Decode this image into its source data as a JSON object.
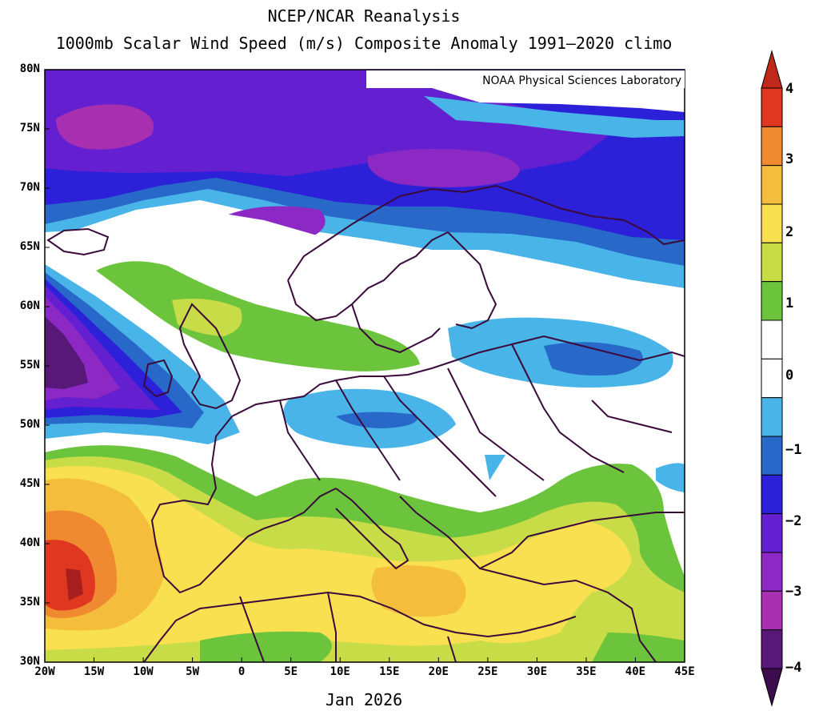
{
  "title_line1": "NCEP/NCAR Reanalysis",
  "title_line2": "1000mb Scalar Wind Speed (m/s) Composite Anomaly 1991–2020 climo",
  "credit": "NOAA Physical Sciences Laboratory",
  "period": "Jan 2026",
  "lat_ticks": [
    "80N",
    "75N",
    "70N",
    "65N",
    "60N",
    "55N",
    "50N",
    "45N",
    "40N",
    "35N",
    "30N"
  ],
  "lon_ticks": [
    "20W",
    "15W",
    "10W",
    "5W",
    "0",
    "5E",
    "10E",
    "15E",
    "20E",
    "25E",
    "30E",
    "35E",
    "40E",
    "45E"
  ],
  "colorbar": {
    "labels": [
      "4",
      "3",
      "2",
      "1",
      "0",
      "−1",
      "−2",
      "−3",
      "−4"
    ],
    "colors": [
      "#e03820",
      "#f08a30",
      "#f4be3c",
      "#f8e050",
      "#c8dc48",
      "#6cc43c",
      "#ffffff",
      "#ffffff",
      "#48b4e8",
      "#2868c8",
      "#2c20d8",
      "#6420d0",
      "#8c28c4",
      "#a830b0",
      "#581878"
    ],
    "top_arrow_color": "#c0281a",
    "bottom_arrow_color": "#3c0c4c"
  },
  "map_colors": {
    "ocean_base": "#ffffff",
    "strong_neg": "#581878",
    "neg3": "#a830b0",
    "neg25": "#8c28c4",
    "neg2": "#6420d0",
    "neg15": "#2c20d8",
    "neg1": "#2868c8",
    "neg05": "#48b4e8",
    "pos05": "#6cc43c",
    "pos1": "#c8dc48",
    "pos2": "#f8e050",
    "pos25": "#f4be3c",
    "pos3": "#f08a30",
    "pos4": "#e03820",
    "pos45": "#a81e1e",
    "coast": "#3a0a3a"
  }
}
